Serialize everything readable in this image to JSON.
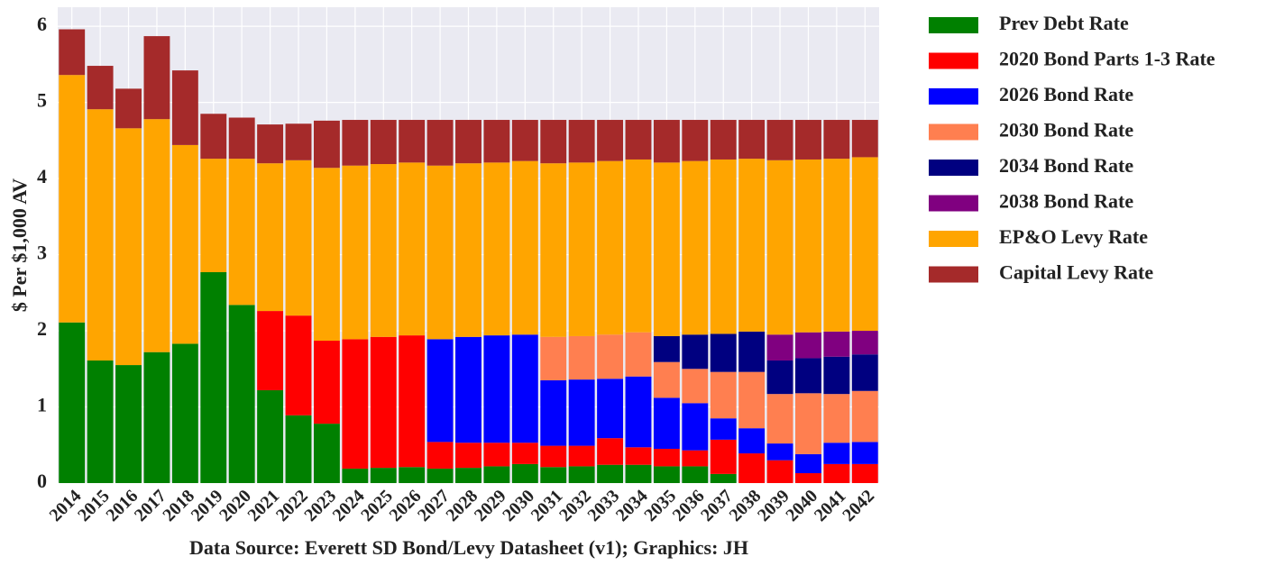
{
  "chart_data": {
    "type": "stacked_bar",
    "ylabel": "$ Per $1,000 AV",
    "xlabel": "Data Source: Everett SD Bond/Levy Datasheet (v1); Graphics: JH",
    "categories": [
      "2014",
      "2015",
      "2016",
      "2017",
      "2018",
      "2019",
      "2020",
      "2021",
      "2022",
      "2023",
      "2024",
      "2025",
      "2026",
      "2027",
      "2028",
      "2029",
      "2030",
      "2031",
      "2032",
      "2033",
      "2034",
      "2035",
      "2036",
      "2037",
      "2038",
      "2039",
      "2040",
      "2041",
      "2042"
    ],
    "series": [
      {
        "name": "Prev Debt Rate",
        "color": "#008000",
        "values": [
          2.11,
          1.61,
          1.55,
          1.72,
          1.83,
          2.77,
          2.34,
          1.22,
          0.89,
          0.78,
          0.19,
          0.2,
          0.21,
          0.19,
          0.2,
          0.22,
          0.25,
          0.21,
          0.22,
          0.24,
          0.24,
          0.22,
          0.22,
          0.12,
          0,
          0,
          0,
          0,
          0
        ]
      },
      {
        "name": "2020 Bond Parts 1-3 Rate",
        "color": "#ff0000",
        "values": [
          0,
          0,
          0,
          0,
          0,
          0,
          0,
          1.04,
          1.31,
          1.09,
          1.7,
          1.72,
          1.73,
          0.35,
          0.33,
          0.31,
          0.28,
          0.28,
          0.27,
          0.35,
          0.23,
          0.23,
          0.21,
          0.45,
          0.39,
          0.3,
          0.13,
          0.25,
          0.25
        ]
      },
      {
        "name": "2026 Bond Rate",
        "color": "#0000ff",
        "values": [
          0,
          0,
          0,
          0,
          0,
          0,
          0,
          0,
          0,
          0,
          0,
          0,
          0,
          1.35,
          1.39,
          1.41,
          1.42,
          0.86,
          0.87,
          0.78,
          0.93,
          0.67,
          0.62,
          0.28,
          0.33,
          0.22,
          0.25,
          0.28,
          0.29
        ]
      },
      {
        "name": "2030 Bond Rate",
        "color": "#ff7f50",
        "values": [
          0,
          0,
          0,
          0,
          0,
          0,
          0,
          0,
          0,
          0,
          0,
          0,
          0,
          0,
          0,
          0,
          0,
          0.57,
          0.57,
          0.58,
          0.58,
          0.47,
          0.45,
          0.61,
          0.74,
          0.65,
          0.8,
          0.64,
          0.67
        ]
      },
      {
        "name": "2034 Bond Rate",
        "color": "#000080",
        "values": [
          0,
          0,
          0,
          0,
          0,
          0,
          0,
          0,
          0,
          0,
          0,
          0,
          0,
          0,
          0,
          0,
          0,
          0,
          0,
          0,
          0,
          0.34,
          0.45,
          0.5,
          0.53,
          0.44,
          0.46,
          0.49,
          0.48
        ]
      },
      {
        "name": "2038 Bond Rate",
        "color": "#800080",
        "values": [
          0,
          0,
          0,
          0,
          0,
          0,
          0,
          0,
          0,
          0,
          0,
          0,
          0,
          0,
          0,
          0,
          0,
          0,
          0,
          0,
          0,
          0,
          0,
          0,
          0,
          0.34,
          0.34,
          0.33,
          0.31
        ]
      },
      {
        "name": "EP&O Levy Rate",
        "color": "#ffa500",
        "values": [
          3.25,
          3.3,
          3.11,
          3.06,
          2.61,
          1.49,
          1.92,
          1.94,
          2.04,
          2.27,
          2.28,
          2.27,
          2.27,
          2.28,
          2.28,
          2.27,
          2.28,
          2.28,
          2.28,
          2.28,
          2.27,
          2.28,
          2.28,
          2.29,
          2.27,
          2.29,
          2.27,
          2.27,
          2.28
        ]
      },
      {
        "name": "Capital Levy Rate",
        "color": "#a52a2a",
        "values": [
          0.6,
          0.57,
          0.52,
          1.09,
          0.98,
          0.59,
          0.54,
          0.51,
          0.48,
          0.62,
          0.6,
          0.58,
          0.56,
          0.6,
          0.57,
          0.56,
          0.54,
          0.57,
          0.56,
          0.54,
          0.52,
          0.56,
          0.54,
          0.52,
          0.51,
          0.53,
          0.52,
          0.51,
          0.49
        ]
      }
    ],
    "ylim": [
      0,
      6.25
    ],
    "yticks": [
      0,
      1,
      2,
      3,
      4,
      5,
      6
    ],
    "grid": true,
    "legend": "outside-right"
  }
}
